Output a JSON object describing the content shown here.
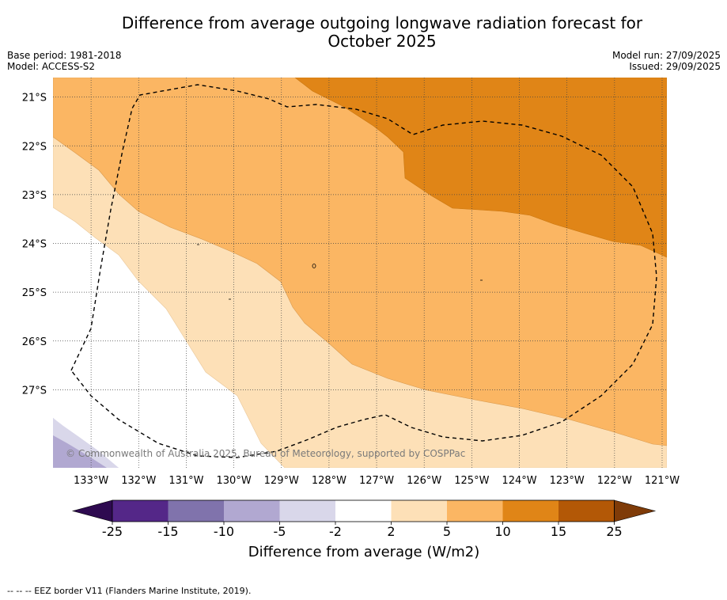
{
  "title": "Difference from average outgoing longwave radiation forecast for October 2025",
  "title_line1": "Difference from average outgoing longwave radiation forecast for",
  "title_line2": "October 2025",
  "meta": {
    "base_period": "Base period: 1981-2018",
    "model": "Model: ACCESS-S2",
    "model_run": "Model run: 27/09/2025",
    "issued": "Issued: 29/09/2025"
  },
  "map": {
    "lat_labels": [
      "21°S",
      "22°S",
      "23°S",
      "24°S",
      "25°S",
      "26°S",
      "27°S"
    ],
    "lon_labels": [
      "133°W",
      "132°W",
      "131°W",
      "130°W",
      "129°W",
      "128°W",
      "127°W",
      "126°W",
      "125°W",
      "124°W",
      "123°W",
      "122°W",
      "121°W"
    ],
    "lon_range": [
      -133.8,
      -120.9
    ],
    "lat_range": [
      -28.6,
      -20.6
    ],
    "copyright": "© Commonwealth of Australia 2025, Bureau of Meteorology, supported by COSPPac",
    "zone_colors": {
      "minus10_minus5": "#b1a8d1",
      "minus5_minus2": "#d9d7ea",
      "minus2_2": "#ffffff",
      "2_5": "#fde0b7",
      "5_10": "#fbb663",
      "10_15": "#e08517"
    }
  },
  "colorbar": {
    "title": "Difference from average (W/m2)",
    "ticks": [
      "-25",
      "-15",
      "-10",
      "-5",
      "-2",
      "2",
      "5",
      "10",
      "15",
      "25"
    ],
    "colors": [
      "#2e0a50",
      "#542788",
      "#8073ac",
      "#b1a8d1",
      "#d9d7ea",
      "#ffffff",
      "#fde0b7",
      "#fbb663",
      "#e08517",
      "#b35806",
      "#7f3b08"
    ]
  },
  "legend_note": "--  --  -- EEZ border V11 (Flanders Marine Institute, 2019)."
}
